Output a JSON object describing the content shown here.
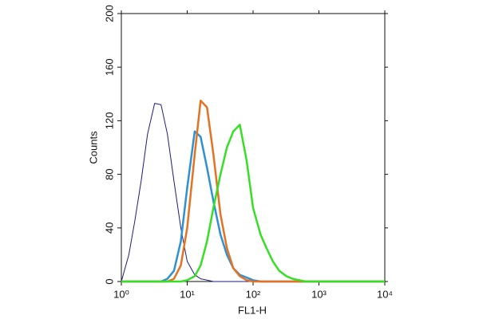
{
  "chart_data": {
    "type": "line",
    "xlabel": "FL1-H",
    "ylabel": "Counts",
    "xscale": "log",
    "x": [
      1,
      1.3,
      1.6,
      2,
      2.5,
      3.2,
      4,
      5,
      6.3,
      8,
      10,
      13,
      16,
      20,
      25,
      32,
      40,
      50,
      63,
      80,
      100,
      130,
      160,
      200,
      250,
      320,
      400,
      500,
      630,
      800,
      1000,
      2000,
      5000,
      10000
    ],
    "series": [
      {
        "name": "navy",
        "color": "#1c1c80",
        "width": 1,
        "values": [
          0,
          20,
          45,
          75,
          110,
          133,
          132,
          110,
          75,
          40,
          15,
          5,
          2,
          1,
          0,
          0,
          0,
          0,
          0,
          0,
          0,
          0,
          0,
          0,
          0,
          0,
          0,
          0,
          0,
          0,
          0,
          0,
          0,
          0
        ]
      },
      {
        "name": "blue",
        "color": "#2f90d2",
        "width": 2.5,
        "values": [
          0,
          0,
          0,
          0,
          0,
          0,
          0,
          2,
          8,
          30,
          70,
          112,
          108,
          85,
          60,
          35,
          20,
          10,
          5,
          3,
          1,
          0,
          0,
          0,
          0,
          0,
          0,
          0,
          0,
          0,
          0,
          0,
          0,
          0
        ]
      },
      {
        "name": "orange",
        "color": "#e47222",
        "width": 2.5,
        "values": [
          0,
          0,
          0,
          0,
          0,
          0,
          0,
          0,
          2,
          12,
          40,
          95,
          135,
          130,
          95,
          50,
          25,
          10,
          4,
          1,
          0,
          0,
          0,
          0,
          0,
          0,
          0,
          0,
          0,
          0,
          0,
          0,
          0,
          0
        ]
      },
      {
        "name": "green",
        "color": "#35e024",
        "width": 2.5,
        "values": [
          0,
          0,
          0,
          0,
          0,
          0,
          0,
          0,
          0,
          0,
          1,
          4,
          12,
          30,
          55,
          80,
          100,
          112,
          117,
          90,
          55,
          35,
          25,
          15,
          8,
          4,
          2,
          1,
          0,
          0,
          0,
          0,
          0,
          0
        ]
      }
    ],
    "xlim": [
      1,
      10000
    ],
    "xticks": [
      {
        "value": 1,
        "label": "10⁰"
      },
      {
        "value": 10,
        "label": "10¹"
      },
      {
        "value": 100,
        "label": "10²"
      },
      {
        "value": 1000,
        "label": "10³"
      },
      {
        "value": 10000,
        "label": "10⁴"
      }
    ],
    "ylim": [
      0,
      200
    ],
    "yticks": [
      0,
      40,
      80,
      120,
      160,
      200
    ]
  }
}
